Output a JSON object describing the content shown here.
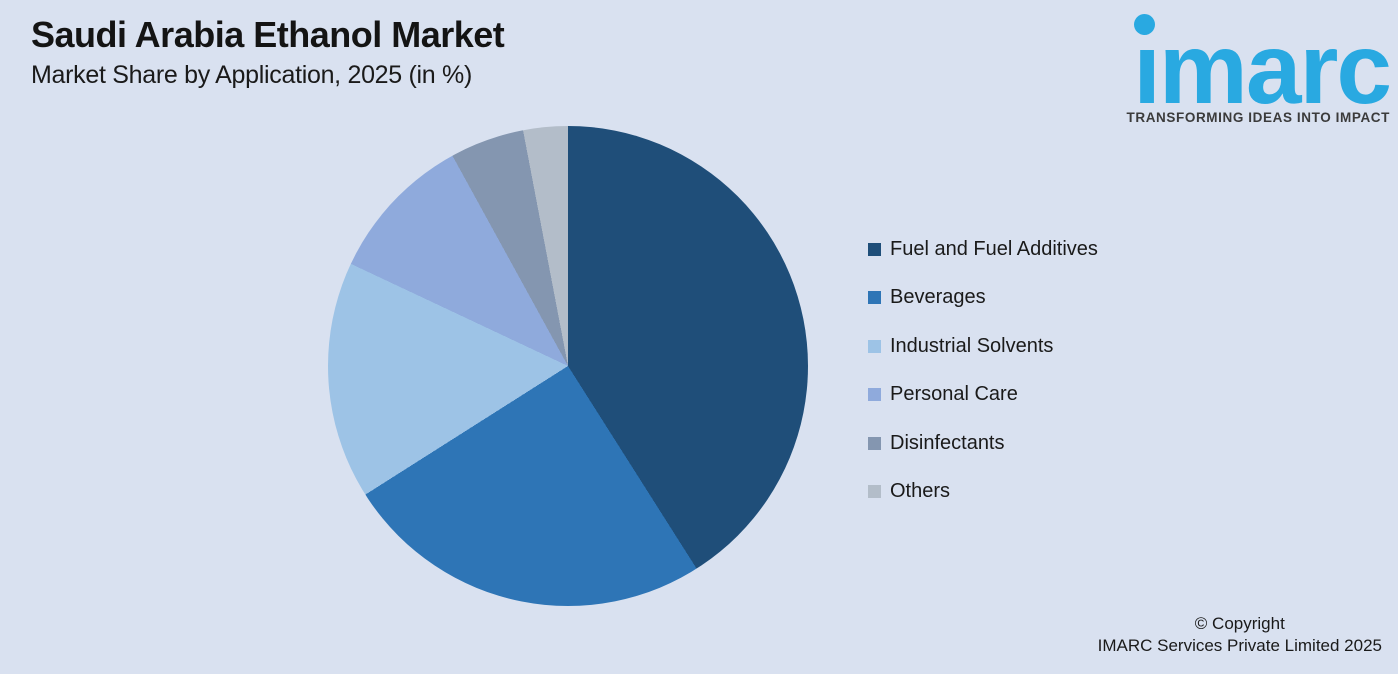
{
  "page": {
    "background_color": "#D9E1F0"
  },
  "header": {
    "title": "Saudi Arabia Ethanol Market",
    "subtitle": "Market Share by Application, 2025 (in %)"
  },
  "logo": {
    "brand": "imarc",
    "wordmark_dotless": "ımarc",
    "tagline": "TRANSFORMING IDEAS INTO IMPACT",
    "brand_color": "#29A9E1",
    "tagline_color": "#3B3B3B"
  },
  "chart_data": {
    "type": "pie",
    "title": "Saudi Arabia Ethanol Market",
    "subtitle": "Market Share by Application, 2025 (in %)",
    "unit": "%",
    "start_angle_deg": 0,
    "direction": "clockwise",
    "legend_position": "right",
    "slices": [
      {
        "label": "Fuel and Fuel Additives",
        "value": 41,
        "color": "#1F4E79"
      },
      {
        "label": "Beverages",
        "value": 25,
        "color": "#2E75B6"
      },
      {
        "label": "Industrial Solvents",
        "value": 16,
        "color": "#9DC3E6"
      },
      {
        "label": "Personal Care",
        "value": 10,
        "color": "#8FAADC"
      },
      {
        "label": "Disinfectants",
        "value": 5,
        "color": "#8496B0"
      },
      {
        "label": "Others",
        "value": 3,
        "color": "#B3BDC9"
      }
    ]
  },
  "footer": {
    "line1": "© Copyright",
    "line2": "IMARC Services Private Limited 2025"
  }
}
